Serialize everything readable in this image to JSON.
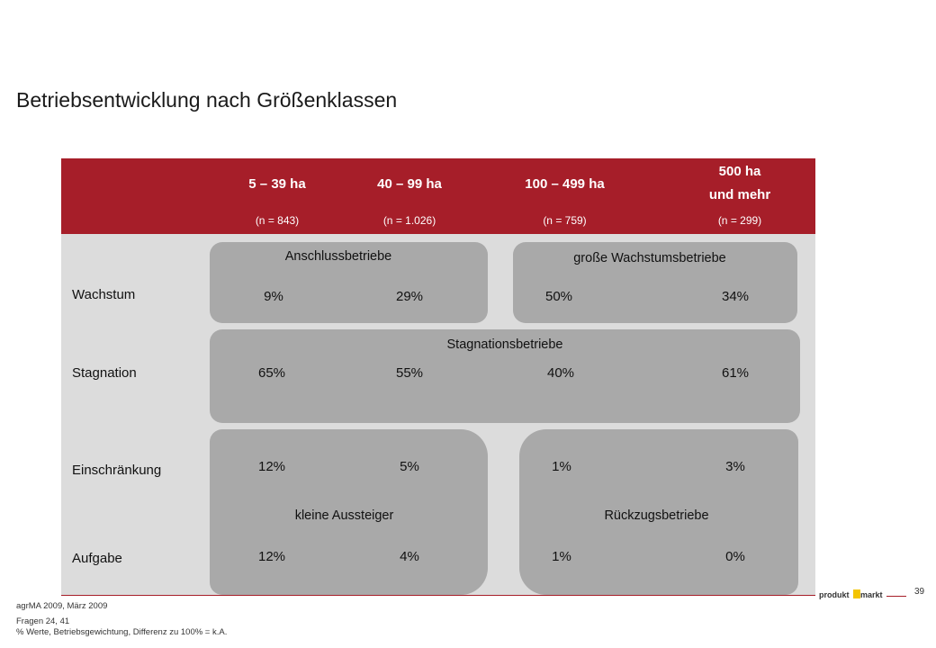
{
  "title": "Betriebsentwicklung nach Größenklassen",
  "columns": [
    {
      "label": "5 – 39 ha",
      "n": "(n = 843)"
    },
    {
      "label": "40 – 99 ha",
      "n": "(n = 1.026)"
    },
    {
      "label": "100 – 499 ha",
      "n": "(n = 759)"
    },
    {
      "label_line1": "500 ha",
      "label_line2": "und mehr",
      "n": "(n = 299)"
    }
  ],
  "rows": [
    {
      "label": "Wachstum",
      "values": [
        "9%",
        "29%",
        "50%",
        "34%"
      ]
    },
    {
      "label": "Stagnation",
      "values": [
        "65%",
        "55%",
        "40%",
        "61%"
      ]
    },
    {
      "label": "Einschränkung",
      "values": [
        "12%",
        "5%",
        "1%",
        "3%"
      ]
    },
    {
      "label": "Aufgabe",
      "values": [
        "12%",
        "4%",
        "1%",
        "0%"
      ]
    }
  ],
  "groups": {
    "anschluss": "Anschlussbetriebe",
    "wachstum": "große Wachstumsbetriebe",
    "stagnation": "Stagnationsbetriebe",
    "aussteiger": "kleine Aussteiger",
    "rueckzug": "Rückzugsbetriebe"
  },
  "footer": {
    "source": "agrMA 2009, März 2009",
    "questions": "Fragen 24, 41",
    "note": "% Werte, Betriebsgewichtung, Differenz zu 100% = k.A."
  },
  "page_number": "39",
  "logo": {
    "text_left": "produkt",
    "text_right": "markt"
  },
  "colors": {
    "header": "#a61e29",
    "panel": "#dcdcdc",
    "box": "#a9a9a9",
    "logo_accent": "#f3c400"
  }
}
